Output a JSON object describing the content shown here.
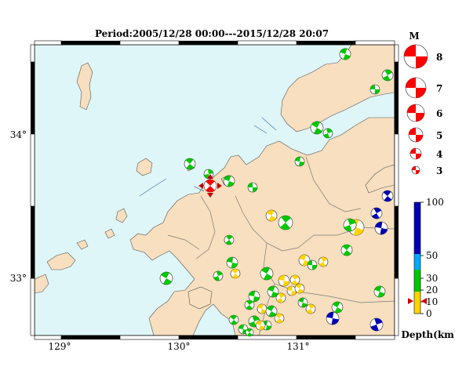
{
  "title": "Period:2005/12/28 00:00---2015/12/28 20:07",
  "map": {
    "lon_ticks": [
      "129°",
      "130°",
      "131°"
    ],
    "lat_ticks": [
      "34°",
      "33°"
    ],
    "colors": {
      "sea": "#dff6f8",
      "land": "#f7dfbf",
      "border": "#7a7a7a",
      "frame_dark": "#000000",
      "frame_light": "#ffffff"
    }
  },
  "magnitude_legend": {
    "title": "M",
    "levels": [
      "8",
      "7",
      "6",
      "5",
      "4",
      "3"
    ],
    "color": "#ff0000"
  },
  "depth_legend": {
    "title": "Depth(km)",
    "ticks": [
      "100",
      "50",
      "30",
      "20",
      "10",
      "0"
    ],
    "colors": [
      "#ffd400",
      "#00c800",
      "#00aaff",
      "#0000b4"
    ]
  },
  "main_event": {
    "type": "reverse-fault mechanism",
    "color": "#ff0000",
    "depth_marker_km": 13
  }
}
